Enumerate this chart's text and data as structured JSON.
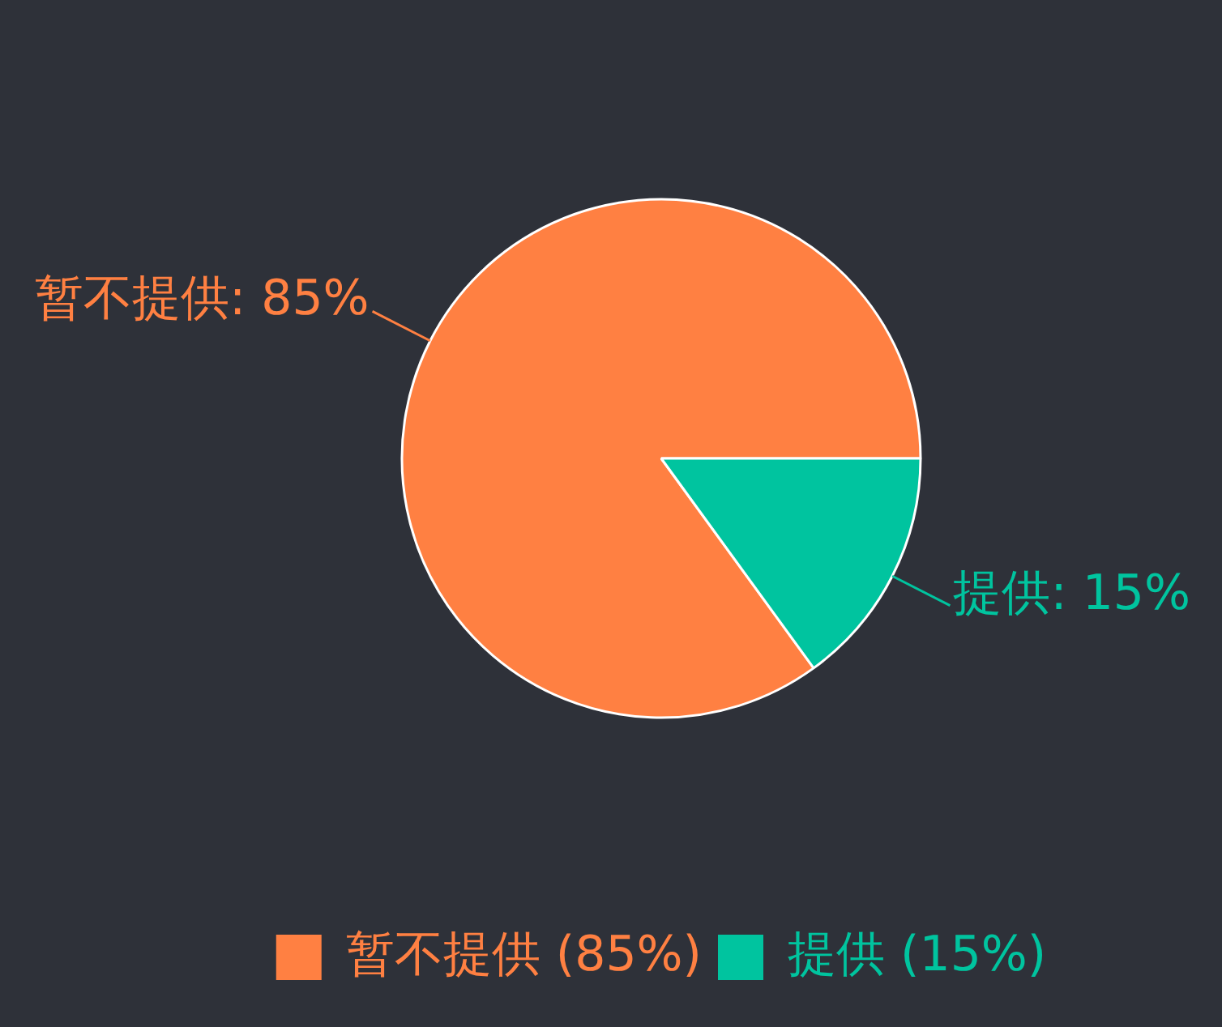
{
  "chart_data": {
    "type": "pie",
    "categories": [
      "暂不提供 (85%)",
      "提供 (15%)"
    ],
    "values": [
      85,
      15
    ],
    "colors": [
      "#ff8042",
      "#00c49f"
    ],
    "value_labels": [
      "暂不提供: 85%",
      "提供: 15%"
    ],
    "legend": "bottom"
  }
}
